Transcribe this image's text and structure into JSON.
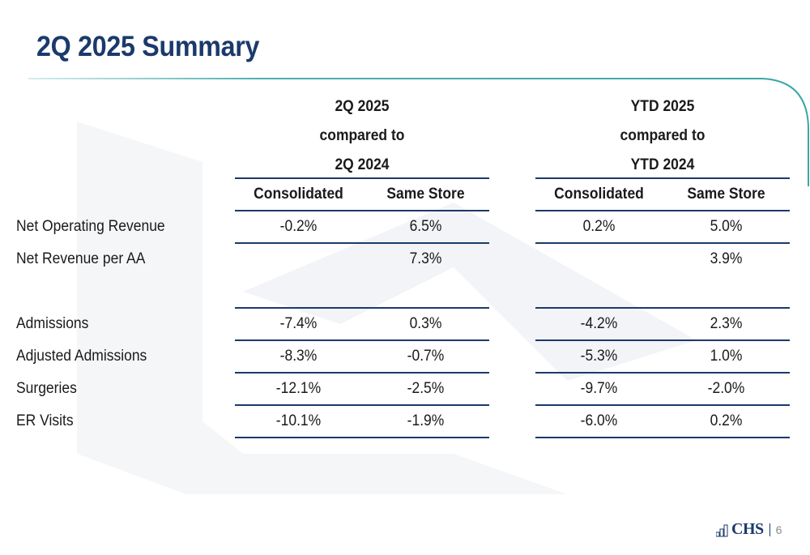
{
  "title": "2Q 2025 Summary",
  "groups": [
    {
      "line1": "2Q 2025",
      "line2": "compared to",
      "line3": "2Q 2024"
    },
    {
      "line1": "YTD 2025",
      "line2": "compared to",
      "line3": "YTD 2024"
    }
  ],
  "column_headers": [
    "Consolidated",
    "Same Store",
    "Consolidated",
    "Same Store"
  ],
  "rows": [
    {
      "label": "Net Operating Revenue",
      "values": [
        "-0.2%",
        "6.5%",
        "0.2%",
        "5.0%"
      ]
    },
    {
      "label": "Net Revenue per AA",
      "values": [
        "",
        "7.3%",
        "",
        "3.9%"
      ]
    },
    {
      "label": "",
      "values": [
        "",
        "",
        "",
        ""
      ]
    },
    {
      "label": "Admissions",
      "values": [
        "-7.4%",
        "0.3%",
        "-4.2%",
        "2.3%"
      ]
    },
    {
      "label": "Adjusted Admissions",
      "values": [
        "-8.3%",
        "-0.7%",
        "-5.3%",
        "1.0%"
      ]
    },
    {
      "label": "Surgeries",
      "values": [
        "-12.1%",
        "-2.5%",
        "-9.7%",
        "-2.0%"
      ]
    },
    {
      "label": "ER Visits",
      "values": [
        "-10.1%",
        "-1.9%",
        "-6.0%",
        "0.2%"
      ]
    }
  ],
  "footer": {
    "logo": "CHS",
    "page_number": "6"
  },
  "colors": {
    "brand_navy": "#1b3a6b",
    "accent_teal": "#3aa6a6"
  },
  "icons": {
    "logo_mark": "chs-logo-icon"
  }
}
